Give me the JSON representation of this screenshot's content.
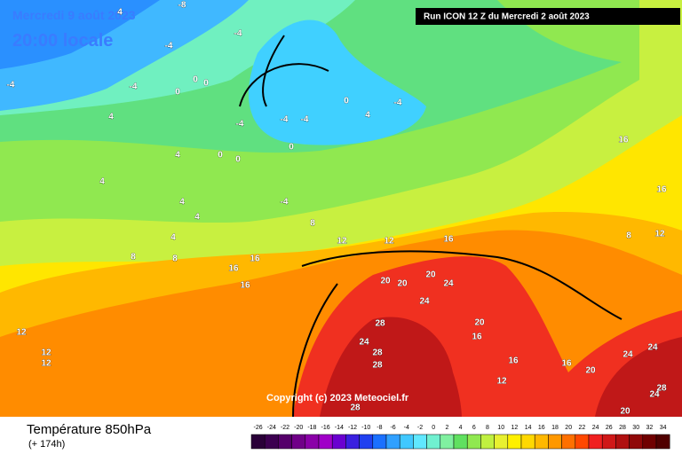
{
  "header": {
    "date": "Mercredi 9 août 2023",
    "time": "20:00 locale",
    "run": "Run ICON 12 Z du Mercredi 2 août 2023"
  },
  "copyright": "Copyright (c) 2023 Meteociel.fr",
  "footer": {
    "title": "Température 850hPa",
    "subtitle": "(+ 174h)"
  },
  "legend": {
    "values": [
      -26,
      -24,
      -22,
      -20,
      -18,
      -16,
      -14,
      -12,
      -10,
      -8,
      -6,
      -4,
      -2,
      0,
      2,
      4,
      6,
      8,
      10,
      12,
      14,
      16,
      18,
      20,
      22,
      24,
      26,
      28,
      30,
      32,
      34
    ],
    "colors": [
      "#2a0038",
      "#3c0050",
      "#55006a",
      "#700088",
      "#8a00a8",
      "#a000c8",
      "#6a00d0",
      "#3a20e0",
      "#2040f0",
      "#1a70ff",
      "#30a0ff",
      "#40c8ff",
      "#60e8ff",
      "#70f0d0",
      "#80f0a0",
      "#60e060",
      "#90e850",
      "#c0f040",
      "#e8f030",
      "#fff000",
      "#ffd800",
      "#ffb800",
      "#ff9800",
      "#ff7000",
      "#ff4800",
      "#f02020",
      "#d01818",
      "#b01010",
      "#900808",
      "#700000",
      "#500000"
    ]
  },
  "map": {
    "labels": [
      "-8",
      "-4",
      "-4",
      "-4",
      "-4",
      "-4",
      "0",
      "0",
      "4",
      "4",
      "-4",
      "-4",
      "0",
      "0",
      "4",
      "-4",
      "0",
      "0",
      "0",
      "4",
      "4",
      "4",
      "4",
      "-4",
      "4",
      "8",
      "8",
      "8",
      "12",
      "12",
      "16",
      "16",
      "16",
      "16",
      "20",
      "20",
      "24",
      "20",
      "24",
      "28",
      "24",
      "28",
      "28",
      "16",
      "20",
      "16",
      "12",
      "12",
      "8",
      "16",
      "12",
      "16",
      "24",
      "24",
      "24",
      "20",
      "28",
      "20",
      "16",
      "12",
      "12",
      "28"
    ]
  }
}
